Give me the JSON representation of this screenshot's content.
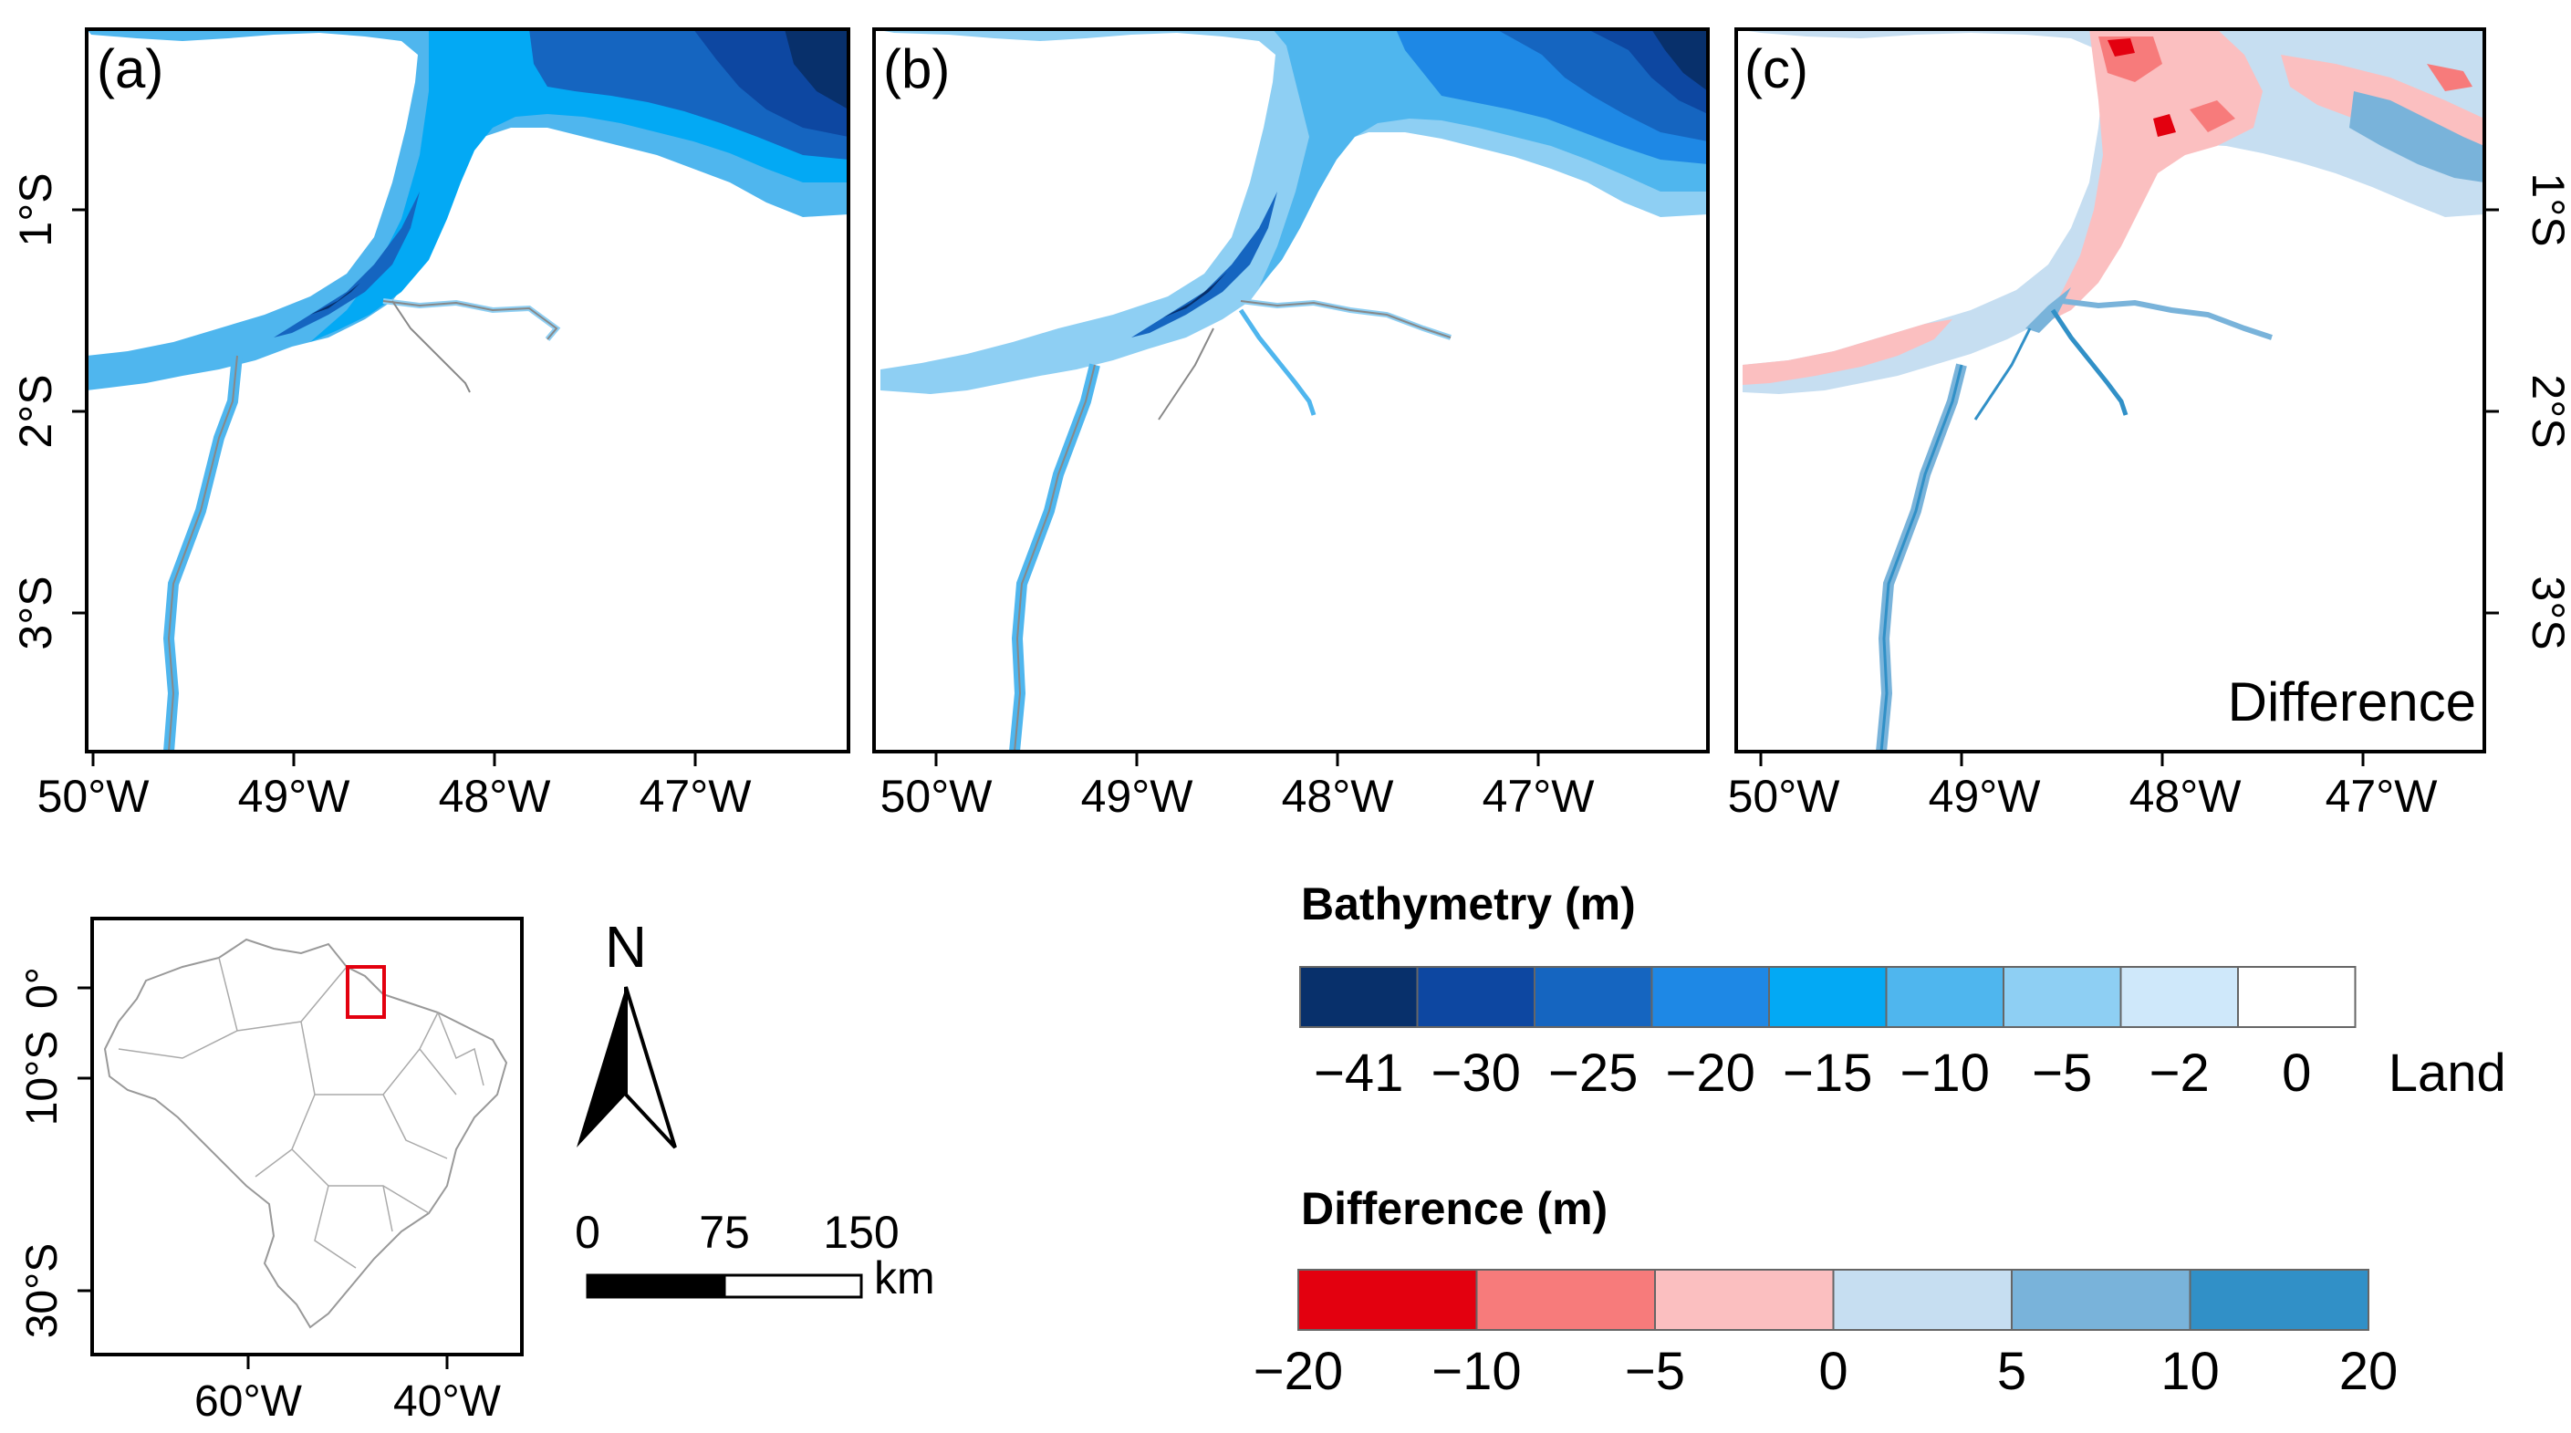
{
  "panels": [
    {
      "id": "a",
      "label": "(a)",
      "corner_text": ""
    },
    {
      "id": "b",
      "label": "(b)",
      "corner_text": ""
    },
    {
      "id": "c",
      "label": "(c)",
      "corner_text": "Difference"
    }
  ],
  "axes": {
    "x_ticks": [
      "50°W",
      "49°W",
      "48°W",
      "47°W"
    ],
    "y_ticks": [
      "1°S",
      "2°S",
      "3°S"
    ]
  },
  "inset_map": {
    "y_ticks": [
      "0°",
      "10°S",
      "30°S"
    ],
    "x_ticks": [
      "60°W",
      "40°W"
    ]
  },
  "north_arrow": {
    "label": "N"
  },
  "scale_bar": {
    "labels": [
      "0",
      "75",
      "150"
    ],
    "unit": "km"
  },
  "bathymetry_legend": {
    "title": "Bathymetry (m)",
    "colors": [
      "#08306b",
      "#0d47a1",
      "#1565c0",
      "#1e88e5",
      "#03a9f4",
      "#4fb6ee",
      "#8ecff3",
      "#cfe8fa",
      "#ffffff"
    ],
    "labels": [
      "−41",
      "−30",
      "−25",
      "−20",
      "−15",
      "−10",
      "−5",
      "−2",
      "0",
      "Land"
    ]
  },
  "difference_legend": {
    "title": "Difference (m)",
    "colors": [
      "#e3000f",
      "#f77b7b",
      "#fbbfc0",
      "#c6def1",
      "#79b3da",
      "#3190c7"
    ],
    "labels": [
      "−20",
      "−10",
      "−5",
      "0",
      "5",
      "10",
      "20"
    ]
  }
}
